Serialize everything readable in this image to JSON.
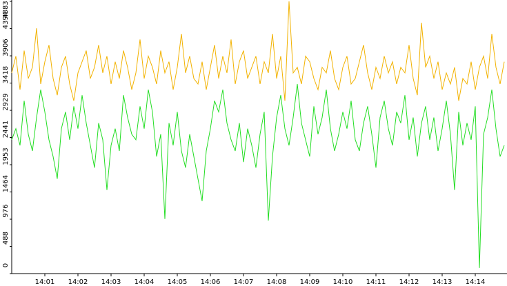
{
  "chart_data": {
    "type": "line",
    "categories": [
      null,
      null,
      null,
      null,
      null,
      null,
      null,
      null,
      "14:01",
      null,
      null,
      null,
      null,
      null,
      null,
      null,
      "14:02",
      null,
      null,
      null,
      null,
      null,
      null,
      null,
      "14:03",
      null,
      null,
      null,
      null,
      null,
      null,
      null,
      "14:04",
      null,
      null,
      null,
      null,
      null,
      null,
      null,
      "14:05",
      null,
      null,
      null,
      null,
      null,
      null,
      null,
      "14:06",
      null,
      null,
      null,
      null,
      null,
      null,
      null,
      "14:07",
      null,
      null,
      null,
      null,
      null,
      null,
      null,
      "14:08",
      null,
      null,
      null,
      null,
      null,
      null,
      null,
      "14:09",
      null,
      null,
      null,
      null,
      null,
      null,
      null,
      "14:10",
      null,
      null,
      null,
      null,
      null,
      null,
      null,
      "14:11",
      null,
      null,
      null,
      null,
      null,
      null,
      null,
      "14:12",
      null,
      null,
      null,
      null,
      null,
      null,
      null,
      "14:13",
      null,
      null,
      null,
      null,
      null,
      null,
      null,
      "14:14",
      null,
      null,
      null,
      null,
      null,
      null,
      null
    ],
    "series": [
      {
        "color": "#f2b200",
        "values": [
          3600,
          3900,
          3300,
          4000,
          3500,
          3700,
          4400,
          3400,
          3800,
          4100,
          3500,
          3200,
          3700,
          3900,
          3400,
          3100,
          3600,
          3800,
          4000,
          3500,
          3700,
          4100,
          3600,
          3900,
          3400,
          3800,
          3500,
          4000,
          3700,
          3300,
          3600,
          4200,
          3500,
          3900,
          3700,
          3400,
          4000,
          3600,
          3800,
          3300,
          3700,
          4300,
          3600,
          3900,
          3500,
          3400,
          3800,
          3300,
          3700,
          4100,
          3500,
          3900,
          3600,
          4200,
          3400,
          3800,
          4000,
          3500,
          3700,
          3900,
          3400,
          3800,
          3600,
          4300,
          3500,
          3900,
          3100,
          4883,
          3600,
          3700,
          3400,
          3900,
          3800,
          3500,
          3300,
          3700,
          3600,
          4000,
          3500,
          3300,
          3700,
          3900,
          3400,
          3500,
          3800,
          4100,
          3600,
          3300,
          3700,
          3500,
          3900,
          3600,
          3800,
          3400,
          3700,
          3600,
          4100,
          3500,
          3200,
          4500,
          3700,
          3900,
          3500,
          3800,
          3300,
          3600,
          3400,
          3700,
          3100,
          3500,
          3400,
          3800,
          3300,
          3700,
          3900,
          3500,
          4300,
          3700,
          3400,
          3800
        ]
      },
      {
        "color": "#22dd22",
        "values": [
          2400,
          2600,
          2300,
          3100,
          2500,
          2200,
          2800,
          3300,
          2900,
          2400,
          2100,
          1700,
          2600,
          2900,
          2400,
          3000,
          2600,
          3200,
          2700,
          2300,
          1900,
          2700,
          2400,
          1500,
          2300,
          2600,
          2200,
          3200,
          2800,
          2500,
          2400,
          3000,
          2600,
          3300,
          2900,
          2100,
          2500,
          980,
          2700,
          2300,
          2900,
          2200,
          1900,
          2500,
          2100,
          1700,
          1300,
          2200,
          2600,
          3100,
          2900,
          3300,
          2700,
          2400,
          2200,
          2700,
          2000,
          2600,
          2300,
          1900,
          2500,
          2900,
          950,
          2100,
          2800,
          3200,
          2600,
          2300,
          2800,
          3400,
          2700,
          2400,
          2100,
          3000,
          2500,
          2800,
          3300,
          2600,
          2200,
          2500,
          2900,
          2600,
          3100,
          2400,
          2200,
          2700,
          3000,
          2500,
          1900,
          2800,
          3100,
          2600,
          2300,
          2900,
          2700,
          3200,
          2400,
          2800,
          2100,
          2700,
          3000,
          2400,
          2800,
          2200,
          2600,
          3100,
          2500,
          1500,
          2900,
          2300,
          2700,
          2400,
          3000,
          100,
          2500,
          2800,
          3300,
          2600,
          2100,
          2300
        ]
      }
    ],
    "ylim": [
      0,
      4883
    ],
    "yticks": [
      0,
      488,
      976,
      1464,
      1953,
      2441,
      2929,
      3418,
      3906,
      4394,
      4883
    ]
  }
}
